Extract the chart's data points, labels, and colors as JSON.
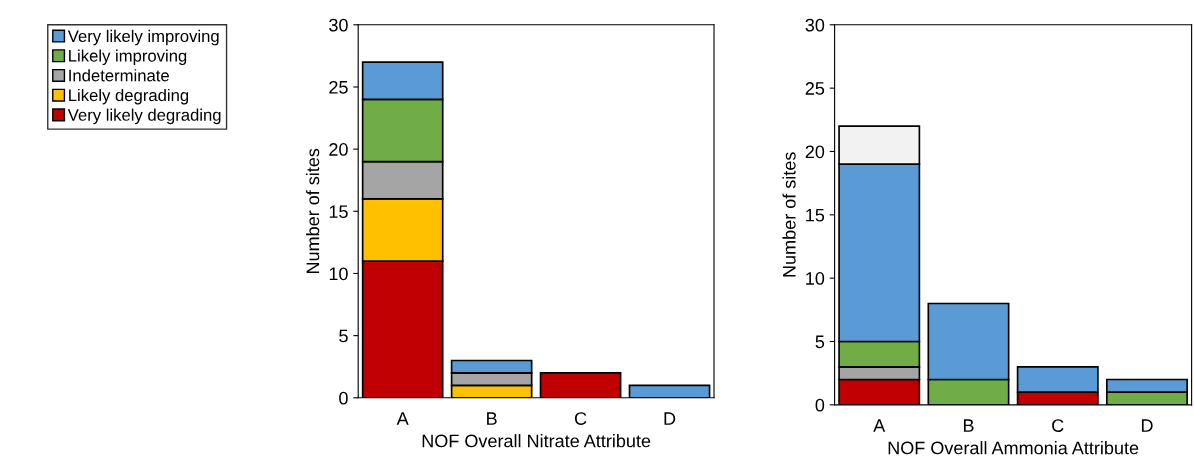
{
  "chart_data": [
    {
      "type": "bar",
      "stacked": true,
      "xlabel": "NOF Overall Nitrate Attribute",
      "ylabel": "Number of sites",
      "categories": [
        "A",
        "B",
        "C",
        "D"
      ],
      "ylim": [
        0,
        30
      ],
      "yticks": [
        0,
        5,
        10,
        15,
        20,
        25,
        30
      ],
      "grid": false,
      "legend": "left",
      "series": [
        {
          "name": "Very likely degrading",
          "color": "#c00000",
          "values": [
            11,
            0,
            2,
            0
          ]
        },
        {
          "name": "Likely degrading",
          "color": "#ffc000",
          "values": [
            5,
            1,
            0,
            0
          ]
        },
        {
          "name": "Indeterminate",
          "color": "#a5a5a5",
          "values": [
            3,
            1,
            0,
            0
          ]
        },
        {
          "name": "Likely improving",
          "color": "#70ad47",
          "values": [
            5,
            0,
            0,
            0
          ]
        },
        {
          "name": "Very likely improving",
          "color": "#5b9bd5",
          "values": [
            3,
            1,
            0,
            1
          ]
        }
      ]
    },
    {
      "type": "bar",
      "stacked": true,
      "xlabel": "NOF Overall Ammonia Attribute",
      "ylabel": "Number of sites",
      "categories": [
        "A",
        "B",
        "C",
        "D"
      ],
      "ylim": [
        0,
        30
      ],
      "yticks": [
        0,
        5,
        10,
        15,
        20,
        25,
        30
      ],
      "grid": false,
      "series": [
        {
          "color": "#c00000",
          "values": [
            2,
            0,
            1,
            0
          ]
        },
        {
          "color": "#a5a5a5",
          "values": [
            1,
            0,
            0,
            0
          ]
        },
        {
          "color": "#70ad47",
          "values": [
            2,
            2,
            0,
            1
          ]
        },
        {
          "color": "#5b9bd5",
          "values": [
            14,
            6,
            2,
            1
          ]
        },
        {
          "color": "#f2f2f2",
          "values": [
            3,
            0,
            0,
            0
          ]
        }
      ]
    }
  ]
}
